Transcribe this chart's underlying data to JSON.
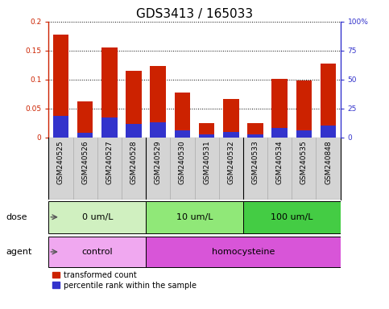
{
  "title": "GDS3413 / 165033",
  "samples": [
    "GSM240525",
    "GSM240526",
    "GSM240527",
    "GSM240528",
    "GSM240529",
    "GSM240530",
    "GSM240531",
    "GSM240532",
    "GSM240533",
    "GSM240534",
    "GSM240535",
    "GSM240848"
  ],
  "red_values": [
    0.178,
    0.062,
    0.155,
    0.115,
    0.124,
    0.077,
    0.025,
    0.067,
    0.025,
    0.101,
    0.099,
    0.127
  ],
  "blue_right_values": [
    19,
    4,
    17,
    12,
    13,
    6,
    2.5,
    5,
    2.5,
    8,
    6.5,
    10
  ],
  "ylim_left": [
    0.0,
    0.2
  ],
  "ylim_right": [
    0,
    100
  ],
  "yticks_left": [
    0,
    0.05,
    0.1,
    0.15,
    0.2
  ],
  "yticks_left_labels": [
    "0",
    "0.05",
    "0.1",
    "0.15",
    "0.2"
  ],
  "yticks_right": [
    0,
    25,
    50,
    75,
    100
  ],
  "yticks_right_labels": [
    "0",
    "25",
    "50",
    "75",
    "100%"
  ],
  "dose_groups": [
    {
      "label": "0 um/L",
      "start": 0,
      "end": 4,
      "color": "#d0f0c0"
    },
    {
      "label": "10 um/L",
      "start": 4,
      "end": 8,
      "color": "#90e878"
    },
    {
      "label": "100 um/L",
      "start": 8,
      "end": 12,
      "color": "#44cc44"
    }
  ],
  "agent_groups": [
    {
      "label": "control",
      "start": 0,
      "end": 4,
      "color": "#f0a8f0"
    },
    {
      "label": "homocysteine",
      "start": 4,
      "end": 12,
      "color": "#d855d8"
    }
  ],
  "dose_label": "dose",
  "agent_label": "agent",
  "legend_red": "transformed count",
  "legend_blue": "percentile rank within the sample",
  "bar_color_red": "#cc2200",
  "bar_color_blue": "#3333cc",
  "tick_bg_color": "#d4d4d4",
  "title_fontsize": 11,
  "tick_fontsize": 6.5,
  "row_label_fontsize": 8,
  "bar_width": 0.65
}
